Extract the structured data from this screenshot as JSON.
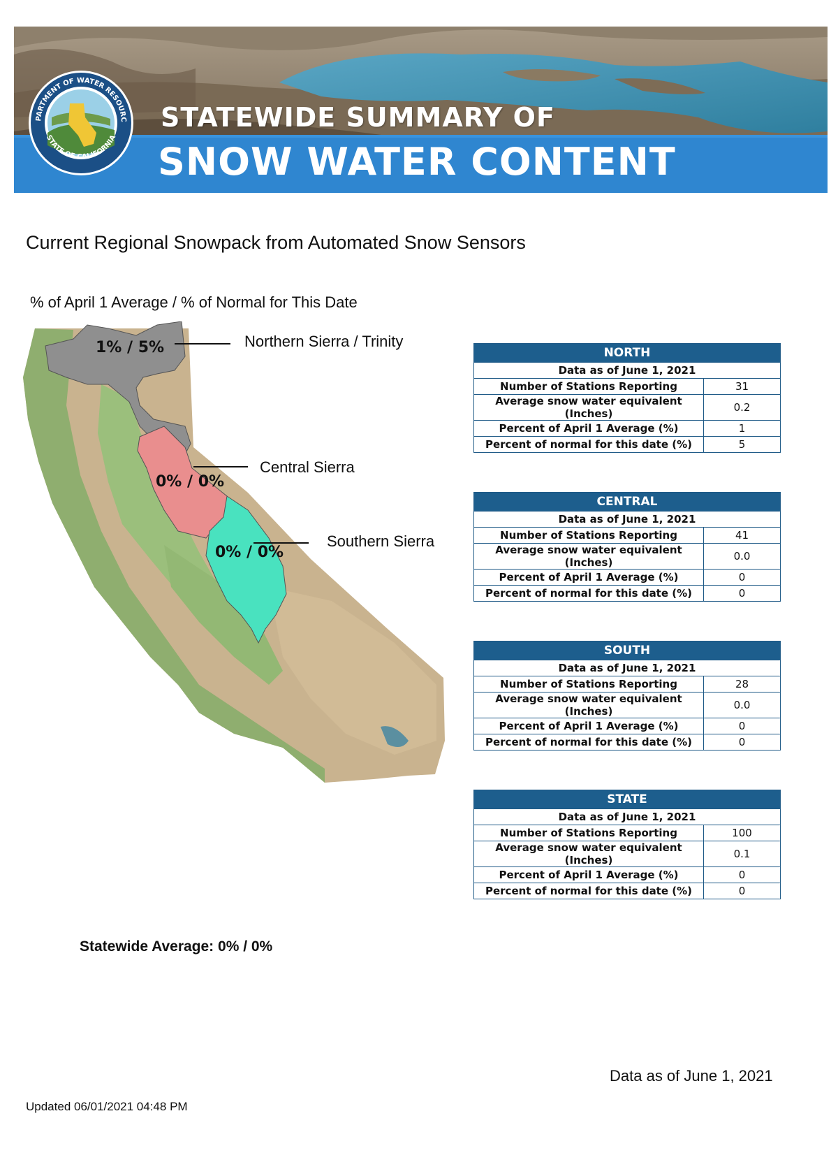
{
  "banner": {
    "line1": "STATEWIDE SUMMARY OF",
    "line2": "SNOW WATER CONTENT",
    "seal_text_top": "DEPARTMENT OF WATER RESOURCES",
    "seal_text_bottom": "STATE OF CALIFORNIA"
  },
  "title": "Current Regional Snowpack from Automated Snow Sensors",
  "subtitle": "% of April 1 Average / % of Normal for This Date",
  "map": {
    "regions": [
      {
        "name": "Northern Sierra / Trinity",
        "value": "1% / 5%",
        "color": "#8f8f8f"
      },
      {
        "name": "Central Sierra",
        "value": "0% / 0%",
        "color": "#e98e8e"
      },
      {
        "name": "Southern Sierra",
        "value": "0% / 0%",
        "color": "#49e2bf"
      }
    ]
  },
  "tables": [
    {
      "title": "NORTH",
      "date": "Data as of June 1, 2021",
      "rows": [
        {
          "label": "Number of Stations Reporting",
          "value": "31"
        },
        {
          "label": "Average snow water equivalent (Inches)",
          "value": "0.2"
        },
        {
          "label": "Percent of April 1 Average (%)",
          "value": "1"
        },
        {
          "label": "Percent of normal for this date (%)",
          "value": "5"
        }
      ]
    },
    {
      "title": "CENTRAL",
      "date": "Data as of June 1, 2021",
      "rows": [
        {
          "label": "Number of Stations Reporting",
          "value": "41"
        },
        {
          "label": "Average snow water equivalent (Inches)",
          "value": "0.0"
        },
        {
          "label": "Percent of April 1 Average (%)",
          "value": "0"
        },
        {
          "label": "Percent of normal for this date (%)",
          "value": "0"
        }
      ]
    },
    {
      "title": "SOUTH",
      "date": "Data as of June 1, 2021",
      "rows": [
        {
          "label": "Number of Stations Reporting",
          "value": "28"
        },
        {
          "label": "Average snow water equivalent (Inches)",
          "value": "0.0"
        },
        {
          "label": "Percent of April 1 Average (%)",
          "value": "0"
        },
        {
          "label": "Percent of normal for this date (%)",
          "value": "0"
        }
      ]
    },
    {
      "title": "STATE",
      "date": "Data as of June 1, 2021",
      "rows": [
        {
          "label": "Number of Stations Reporting",
          "value": "100"
        },
        {
          "label": "Average snow water equivalent (Inches)",
          "value": "0.1"
        },
        {
          "label": "Percent of April 1 Average (%)",
          "value": "0"
        },
        {
          "label": "Percent of normal for this date (%)",
          "value": "0"
        }
      ]
    }
  ],
  "statewide_average": "Statewide Average: 0% / 0%",
  "footer": {
    "data_as_of": "Data as of June 1, 2021",
    "updated": "Updated 06/01/2021 04:48 PM"
  },
  "colors": {
    "header_blue": "#1d5e8d",
    "banner_blue": "#2f86d0",
    "lake": "#3f94b2"
  }
}
